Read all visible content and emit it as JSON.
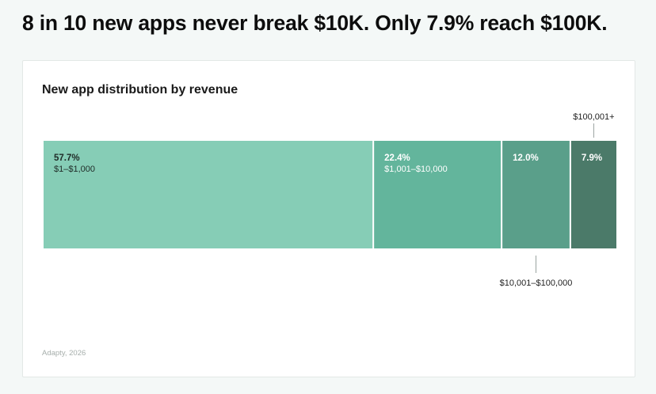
{
  "headline": "8 in 10 new apps never break $10K. Only 7.9% reach $100K.",
  "source": "Adapty, 2026",
  "colors": {
    "background": "#f4f8f7",
    "segments": [
      "#86cdb6",
      "#63b59c",
      "#5a9f8a",
      "#4b7a69"
    ],
    "label_dark": "#1f2b27",
    "label_light": "#ffffff",
    "leader": "#9aa3a0"
  },
  "chart_data": {
    "type": "bar",
    "orientation": "horizontal-stacked",
    "title": "New app distribution by revenue",
    "categories": [
      "$1–$1,000",
      "$1,001–$10,000",
      "$10,001–$100,000",
      "$100,001+"
    ],
    "values": [
      57.7,
      22.4,
      12.0,
      7.9
    ],
    "value_labels": [
      "57.7%",
      "22.4%",
      "12.0%",
      "7.9%"
    ],
    "unit": "%",
    "xlim": [
      0,
      100
    ],
    "grid": false,
    "legend": "none"
  }
}
